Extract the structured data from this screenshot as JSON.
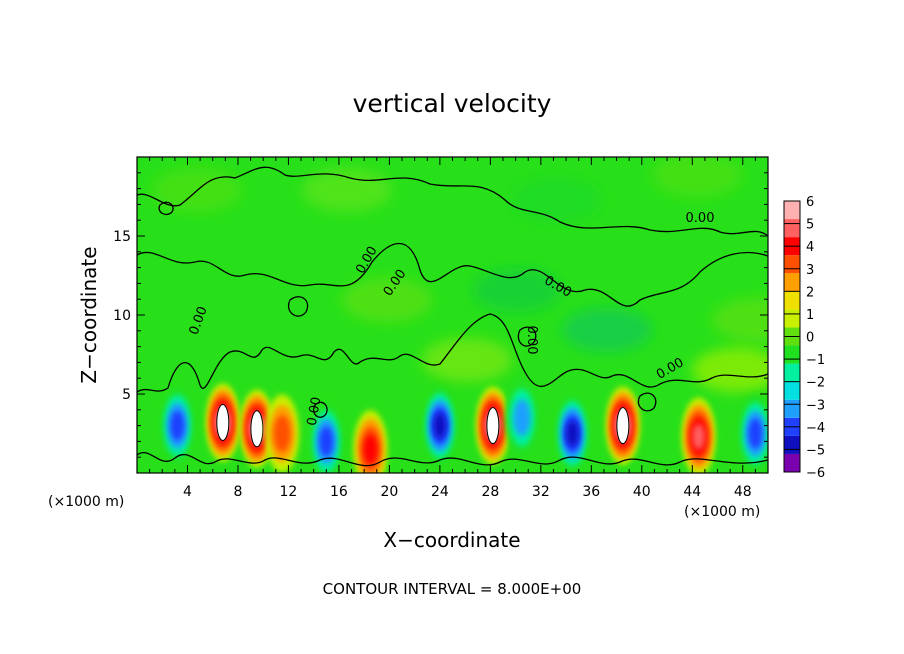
{
  "chart_data": {
    "type": "heatmap",
    "title": "vertical velocity",
    "xlabel": "X−coordinate",
    "ylabel": "Z−coordinate",
    "x_unit_left": "(×1000 m)",
    "x_unit_right": "(×1000 m)",
    "footer": "CONTOUR INTERVAL = 8.000E+00",
    "xlim": [
      0,
      50
    ],
    "ylim": [
      0,
      20
    ],
    "x_ticks": [
      4,
      8,
      12,
      16,
      20,
      24,
      28,
      32,
      36,
      40,
      44,
      48
    ],
    "y_ticks": [
      5,
      10,
      15
    ],
    "contour_labels": [
      "0.00",
      "0.00",
      "0.00",
      "0.00",
      "0.00",
      "0.00",
      "0.00",
      "0.00"
    ],
    "colorbar": {
      "min": -6,
      "max": 6,
      "tick_labels": [
        "6",
        "5",
        "4",
        "3",
        "2",
        "1",
        "0",
        "−1",
        "−2",
        "−3",
        "−4",
        "−5",
        "−6"
      ],
      "colors": [
        "#7b00b0",
        "#1010c0",
        "#1f40ff",
        "#1fa0ff",
        "#00e0e0",
        "#00f0a0",
        "#20e020",
        "#60e010",
        "#c8f000",
        "#f0e000",
        "#ffa000",
        "#ff5000",
        "#ff0000",
        "#ff6060",
        "#ffb0b0"
      ]
    },
    "features": [
      {
        "x": 3.2,
        "z": 3.0,
        "value": -3.8
      },
      {
        "x": 6.8,
        "z": 3.2,
        "value": 6.0
      },
      {
        "x": 9.5,
        "z": 2.8,
        "value": 6.0
      },
      {
        "x": 11.5,
        "z": 2.5,
        "value": 2.8
      },
      {
        "x": 15.0,
        "z": 2.0,
        "value": -3.5
      },
      {
        "x": 18.5,
        "z": 1.5,
        "value": 4.0
      },
      {
        "x": 24.0,
        "z": 3.0,
        "value": -4.5
      },
      {
        "x": 28.2,
        "z": 3.0,
        "value": 6.0
      },
      {
        "x": 30.5,
        "z": 3.5,
        "value": -3.2
      },
      {
        "x": 34.5,
        "z": 2.5,
        "value": -4.8
      },
      {
        "x": 38.5,
        "z": 3.0,
        "value": 6.0
      },
      {
        "x": 44.5,
        "z": 2.3,
        "value": 4.5
      },
      {
        "x": 49.0,
        "z": 2.5,
        "value": -4.0
      }
    ]
  }
}
